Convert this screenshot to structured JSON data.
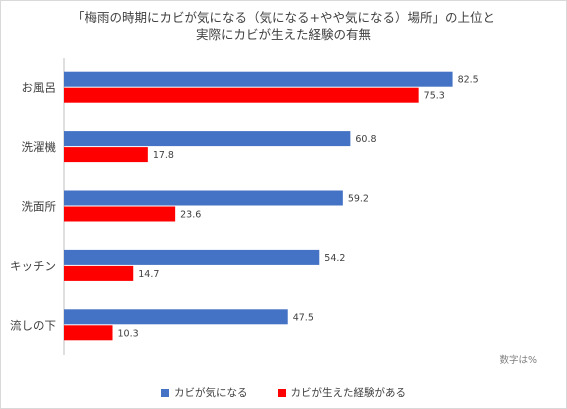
{
  "title_line1": "「梅雨の時期にカビが気になる（気になる+やや気になる）場所」の上位と",
  "title_line2": "実際にカビが生えた経験の有無",
  "note": "数字は%",
  "colors": {
    "series1": "#4472c4",
    "series2": "#ff0000",
    "label_text": "#404040",
    "axis": "#bfbfbf"
  },
  "chart_data": {
    "type": "bar",
    "orientation": "horizontal",
    "categories": [
      "お風呂",
      "洗濯機",
      "洗面所",
      "キッチン",
      "流しの下"
    ],
    "series": [
      {
        "name": "カビが気になる",
        "values": [
          82.5,
          60.8,
          59.2,
          54.2,
          47.5
        ]
      },
      {
        "name": "カビが生えた経験がある",
        "values": [
          75.3,
          17.8,
          23.6,
          14.7,
          10.3
        ]
      }
    ],
    "title": "「梅雨の時期にカビが気になる（気になる+やや気になる）場所」の上位と 実際にカビが生えた経験の有無",
    "xlim": [
      0,
      100
    ],
    "legend_position": "bottom",
    "grid": false
  }
}
